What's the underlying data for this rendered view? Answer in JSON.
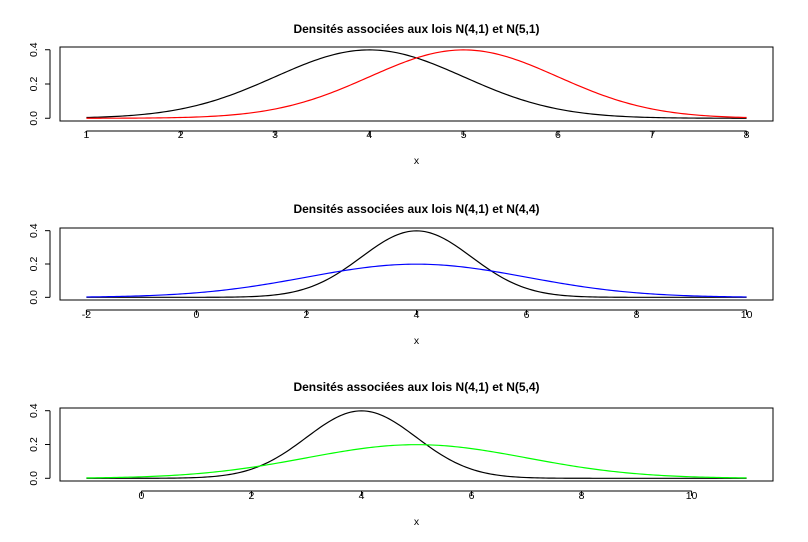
{
  "chart_data": [
    {
      "type": "line",
      "title": "Densités associées aux lois N(4,1) et N(5,1)",
      "xlabel": "x",
      "ylabel": "",
      "xlim": [
        1,
        8
      ],
      "ylim": [
        0,
        0.4
      ],
      "xticks": [
        "1",
        "2",
        "3",
        "4",
        "5",
        "6",
        "7",
        "8"
      ],
      "yticks": [
        "0.0",
        "0.2",
        "0.4"
      ],
      "grid": false,
      "series": [
        {
          "color": "#000000",
          "x": [
            1,
            2,
            3,
            4,
            5,
            6,
            7,
            8
          ],
          "values": [
            0.0044,
            0.054,
            0.242,
            0.399,
            0.242,
            0.054,
            0.0044,
            0.0001
          ]
        },
        {
          "color": "#ff0000",
          "x": [
            1,
            2,
            3,
            4,
            5,
            6,
            7,
            8
          ],
          "values": [
            0.0001,
            0.0044,
            0.054,
            0.242,
            0.399,
            0.242,
            0.054,
            0.0044
          ]
        }
      ]
    },
    {
      "type": "line",
      "title": "Densités associées aux lois N(4,1) et N(4,4)",
      "xlabel": "x",
      "ylabel": "",
      "xlim": [
        -2,
        10
      ],
      "ylim": [
        0,
        0.4
      ],
      "xticks": [
        "-2",
        "0",
        "2",
        "4",
        "6",
        "8",
        "10"
      ],
      "yticks": [
        "0.0",
        "0.2",
        "0.4"
      ],
      "grid": false,
      "series": [
        {
          "color": "#000000",
          "x": [
            -2,
            0,
            2,
            3,
            4,
            5,
            6,
            8,
            10
          ],
          "values": [
            0.0,
            0.0001,
            0.054,
            0.242,
            0.399,
            0.242,
            0.054,
            0.0001,
            0.0
          ]
        },
        {
          "color": "#0000ff",
          "x": [
            -2,
            0,
            2,
            3,
            4,
            5,
            6,
            8,
            10
          ],
          "values": [
            0.0022,
            0.027,
            0.121,
            0.176,
            0.199,
            0.176,
            0.121,
            0.027,
            0.0022
          ]
        }
      ]
    },
    {
      "type": "line",
      "title": "Densités associées aux lois N(4,1) et N(5,4)",
      "xlabel": "x",
      "ylabel": "",
      "xlim": [
        -1,
        11
      ],
      "ylim": [
        0,
        0.4
      ],
      "xticks": [
        "0",
        "2",
        "4",
        "6",
        "8",
        "10"
      ],
      "yticks": [
        "0.0",
        "0.2",
        "0.4"
      ],
      "grid": false,
      "series": [
        {
          "color": "#000000",
          "x": [
            -1,
            0,
            2,
            3,
            4,
            5,
            6,
            8,
            10,
            11
          ],
          "values": [
            0.0,
            0.0001,
            0.054,
            0.242,
            0.399,
            0.242,
            0.054,
            0.0001,
            0.0,
            0.0
          ]
        },
        {
          "color": "#00ff00",
          "x": [
            -1,
            0,
            2,
            3,
            4,
            5,
            6,
            8,
            10,
            11
          ],
          "values": [
            0.0022,
            0.0088,
            0.065,
            0.121,
            0.176,
            0.199,
            0.176,
            0.065,
            0.0088,
            0.0022
          ]
        }
      ]
    }
  ]
}
